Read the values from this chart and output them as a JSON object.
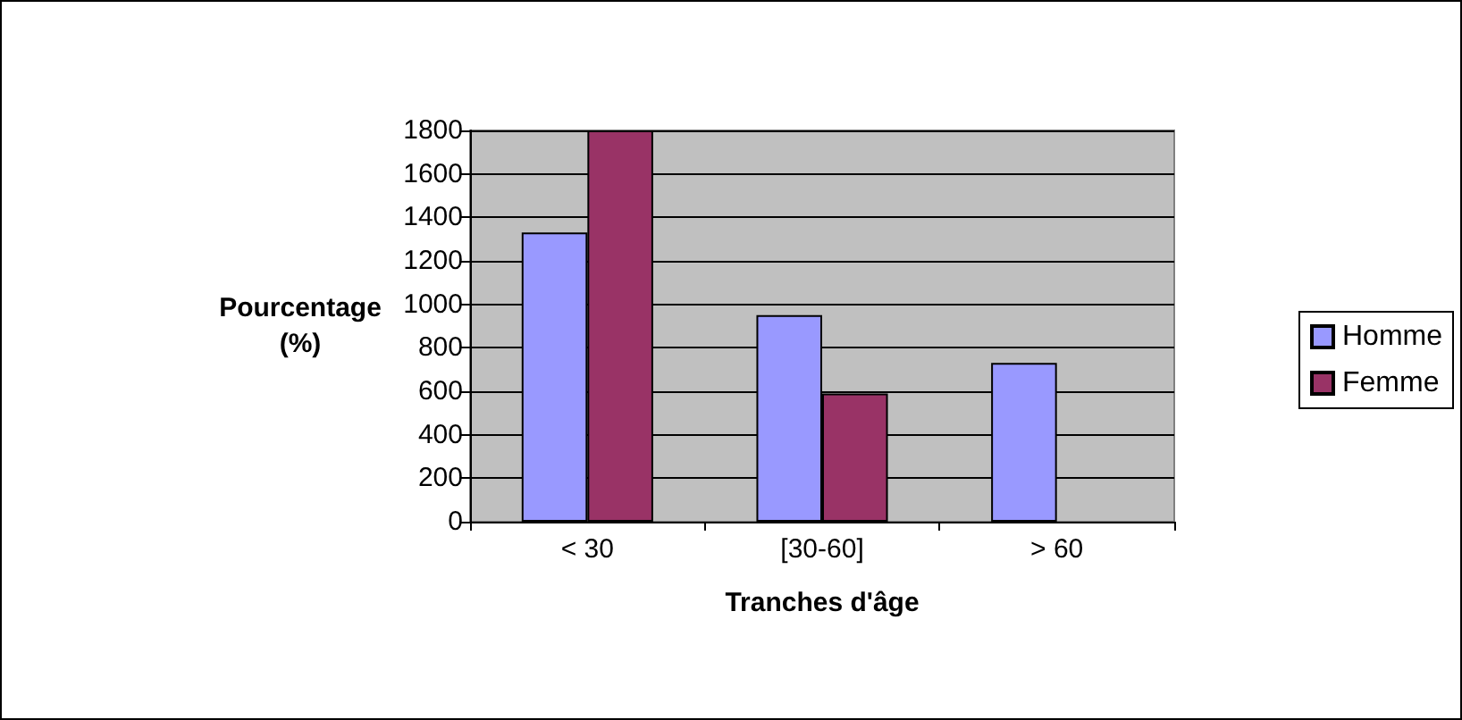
{
  "chart_data": {
    "type": "bar",
    "xlabel": "Tranches d'âge",
    "ylabel": "Pourcentage\n(%)",
    "categories": [
      "< 30",
      "[30-60]",
      "> 60"
    ],
    "series": [
      {
        "name": "Homme",
        "color": "#9999ff",
        "values": [
          1330,
          950,
          730
        ]
      },
      {
        "name": "Femme",
        "color": "#993366",
        "values": [
          1800,
          590,
          null
        ]
      }
    ],
    "ylim": [
      0,
      1800
    ],
    "yticks": [
      0,
      200,
      400,
      600,
      800,
      1000,
      1200,
      1400,
      1600,
      1800
    ],
    "grid": "y",
    "legend": "right"
  }
}
